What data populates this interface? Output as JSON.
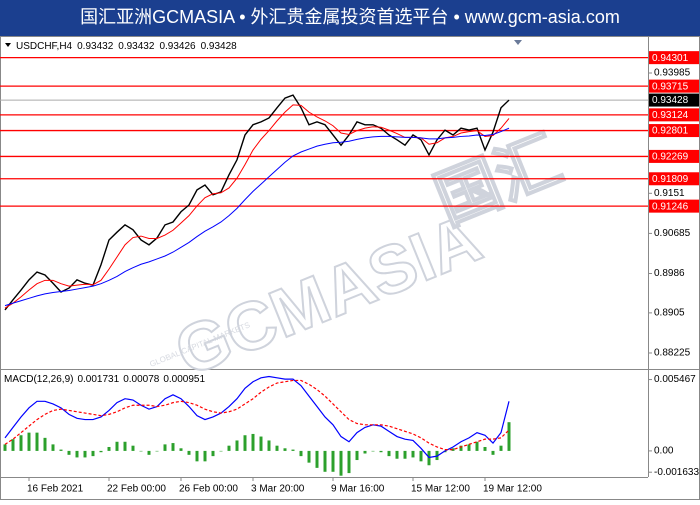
{
  "banner": {
    "title": "国汇亚洲GCMASIA • 外汇贵金属投资首选平台 • www.gcm-asia.com"
  },
  "chart_data": [
    {
      "type": "price",
      "symbol": "USDCHF,H4",
      "ohlc": [
        0.93432,
        0.93432,
        0.93426,
        0.93428
      ],
      "categories": [
        null,
        null,
        null,
        "16 Feb 2021",
        null,
        null,
        null,
        null,
        null,
        null,
        null,
        null,
        null,
        "22 Feb 00:00",
        null,
        null,
        null,
        null,
        null,
        null,
        null,
        null,
        "26 Feb 00:00",
        null,
        null,
        null,
        null,
        null,
        null,
        null,
        null,
        "3 Mar 20:00",
        null,
        null,
        null,
        null,
        null,
        null,
        null,
        null,
        null,
        "9 Mar 16:00",
        null,
        null,
        null,
        null,
        null,
        null,
        null,
        null,
        null,
        "15 Mar 12:00",
        null,
        null,
        null,
        null,
        null,
        null,
        null,
        null,
        "19 Mar 12:00",
        null,
        null,
        null
      ],
      "series": [
        {
          "color": "#000000",
          "values": [
            0.8911,
            0.8932,
            0.8952,
            0.8973,
            0.8989,
            0.8983,
            0.8966,
            0.8948,
            0.8956,
            0.8973,
            0.8966,
            0.8962,
            0.9004,
            0.9055,
            0.9071,
            0.9086,
            0.9076,
            0.9055,
            0.9045,
            0.9059,
            0.9086,
            0.9092,
            0.9113,
            0.9127,
            0.9158,
            0.9168,
            0.9148,
            0.9154,
            0.9189,
            0.922,
            0.9271,
            0.9292,
            0.9298,
            0.9306,
            0.9327,
            0.9347,
            0.9353,
            0.9327,
            0.9292,
            0.9298,
            0.9292,
            0.9271,
            0.925,
            0.9271,
            0.9298,
            0.9292,
            0.9292,
            0.9285,
            0.9271,
            0.9261,
            0.925,
            0.9271,
            0.9261,
            0.923,
            0.9261,
            0.9281,
            0.9271,
            0.9285,
            0.9281,
            0.9285,
            0.924,
            0.9277,
            0.9327,
            0.93428
          ]
        },
        {
          "color": "#ff0000",
          "values": [
            0.8915,
            0.8925,
            0.8938,
            0.8952,
            0.8965,
            0.8972,
            0.8972,
            0.8965,
            0.896,
            0.8962,
            0.8964,
            0.8963,
            0.8972,
            0.8995,
            0.902,
            0.9045,
            0.906,
            0.9063,
            0.9058,
            0.9058,
            0.9065,
            0.9075,
            0.909,
            0.9105,
            0.9125,
            0.9142,
            0.915,
            0.9152,
            0.9162,
            0.9182,
            0.921,
            0.924,
            0.9262,
            0.928,
            0.93,
            0.9318,
            0.9333,
            0.9332,
            0.9318,
            0.9308,
            0.93,
            0.929,
            0.9275,
            0.9272,
            0.928,
            0.9285,
            0.9288,
            0.9287,
            0.9281,
            0.9274,
            0.9266,
            0.9266,
            0.9265,
            0.9252,
            0.9255,
            0.9265,
            0.9268,
            0.9275,
            0.9278,
            0.928,
            0.9268,
            0.927,
            0.9285,
            0.9305
          ]
        },
        {
          "color": "#0000ff",
          "values": [
            0.892,
            0.8925,
            0.893,
            0.8935,
            0.894,
            0.8944,
            0.8947,
            0.8949,
            0.8951,
            0.8954,
            0.8957,
            0.896,
            0.8965,
            0.8972,
            0.898,
            0.899,
            0.8998,
            0.9005,
            0.901,
            0.9016,
            0.9022,
            0.903,
            0.904,
            0.905,
            0.9062,
            0.9073,
            0.9082,
            0.9092,
            0.9105,
            0.912,
            0.9138,
            0.9155,
            0.917,
            0.9185,
            0.92,
            0.9215,
            0.9228,
            0.9236,
            0.9242,
            0.9248,
            0.9252,
            0.9255,
            0.9256,
            0.9258,
            0.9262,
            0.9265,
            0.9267,
            0.9268,
            0.9268,
            0.9267,
            0.9266,
            0.9266,
            0.9265,
            0.9263,
            0.9263,
            0.9265,
            0.9266,
            0.9268,
            0.9269,
            0.9271,
            0.927,
            0.9272,
            0.9278,
            0.9285
          ]
        }
      ],
      "ylim": [
        0.87916,
        0.94664
      ],
      "yticks": [
        0.93985,
        0.9151,
        0.90685,
        0.8986,
        0.8905,
        0.88225
      ],
      "levels": [
        0.94301,
        0.93715,
        0.93124,
        0.92801,
        0.92269,
        0.91809,
        0.91246
      ],
      "level_color": "#ff0000",
      "last": 0.93428,
      "watermark": "GCMASIA",
      "watermark_cn": "国汇",
      "watermark_sub": "GLOBAL CAPITAL MARKETS"
    },
    {
      "type": "macd",
      "indicator": "MACD(12,26,9)",
      "readings": [
        0.001731,
        0.00078,
        0.000951
      ],
      "series": [
        {
          "kind": "bar",
          "color": "#2ca02c",
          "values": [
            0.0005,
            0.0009,
            0.0012,
            0.0014,
            0.0014,
            0.001,
            0.0005,
            0.0001,
            -0.0003,
            -0.0005,
            -0.0005,
            -0.0004,
            -0.0001,
            0.0003,
            0.0007,
            0.0007,
            0.0004,
            0,
            -0.0003,
            0,
            0.0005,
            0.0006,
            0.0002,
            -0.0003,
            -0.0008,
            -0.0008,
            -0.0004,
            0,
            0.0004,
            0.0008,
            0.0012,
            0.0013,
            0.0011,
            0.0008,
            0.0004,
            0.0002,
            0.0001,
            -0.0004,
            -0.0009,
            -0.0013,
            -0.0016,
            -0.0016,
            -0.0019,
            -0.0017,
            -0.0007,
            -0.0002,
            0,
            -0.0001,
            -0.0004,
            -0.0006,
            -0.0006,
            -0.0005,
            -0.0008,
            -0.0011,
            -0.0007,
            -0.0001,
            0.0002,
            0.0004,
            0.0005,
            0.0007,
            0.0003,
            -0.0003,
            0.0004,
            0.0022
          ]
        },
        {
          "kind": "line",
          "color": "#0000ff",
          "values": [
            0.001,
            0.0018,
            0.0026,
            0.0033,
            0.0038,
            0.0038,
            0.0036,
            0.0033,
            0.0028,
            0.0025,
            0.0024,
            0.0024,
            0.0026,
            0.0031,
            0.0037,
            0.004,
            0.0039,
            0.0035,
            0.0032,
            0.0034,
            0.004,
            0.0043,
            0.004,
            0.0034,
            0.0027,
            0.0024,
            0.0026,
            0.0029,
            0.0034,
            0.004,
            0.0048,
            0.0053,
            0.0056,
            0.0057,
            0.0056,
            0.0055,
            0.0055,
            0.005,
            0.0042,
            0.0034,
            0.0026,
            0.002,
            0.0011,
            0.0007,
            0.0014,
            0.0018,
            0.002,
            0.0019,
            0.0015,
            0.0011,
            0.0009,
            0.0008,
            0.0002,
            -0.0005,
            -0.0004,
            0,
            0.0003,
            0.0007,
            0.001,
            0.0014,
            0.0012,
            0.0006,
            0.0014,
            0.0038
          ]
        },
        {
          "kind": "dash",
          "color": "#ff0000",
          "values": [
            0.0005,
            0.0009,
            0.0014,
            0.0019,
            0.0024,
            0.0028,
            0.0031,
            0.0032,
            0.0031,
            0.003,
            0.0029,
            0.0028,
            0.0027,
            0.0028,
            0.003,
            0.0033,
            0.0035,
            0.0035,
            0.0035,
            0.0034,
            0.0035,
            0.0037,
            0.0038,
            0.0037,
            0.0035,
            0.0032,
            0.003,
            0.0029,
            0.003,
            0.0032,
            0.0036,
            0.004,
            0.0045,
            0.0049,
            0.0052,
            0.0053,
            0.0054,
            0.0054,
            0.0051,
            0.0047,
            0.0042,
            0.0036,
            0.003,
            0.0024,
            0.0021,
            0.002,
            0.002,
            0.002,
            0.0019,
            0.0017,
            0.0015,
            0.0013,
            0.001,
            0.0006,
            0.0003,
            0.0001,
            0.0001,
            0.0003,
            0.0005,
            0.0007,
            0.0009,
            0.0009,
            0.001,
            0.0016
          ]
        }
      ],
      "ylim": [
        -0.002,
        0.0062
      ],
      "yticks": [
        0.005467,
        {
          "value": 0,
          "label": "0.00"
        },
        -0.001633
      ]
    }
  ]
}
